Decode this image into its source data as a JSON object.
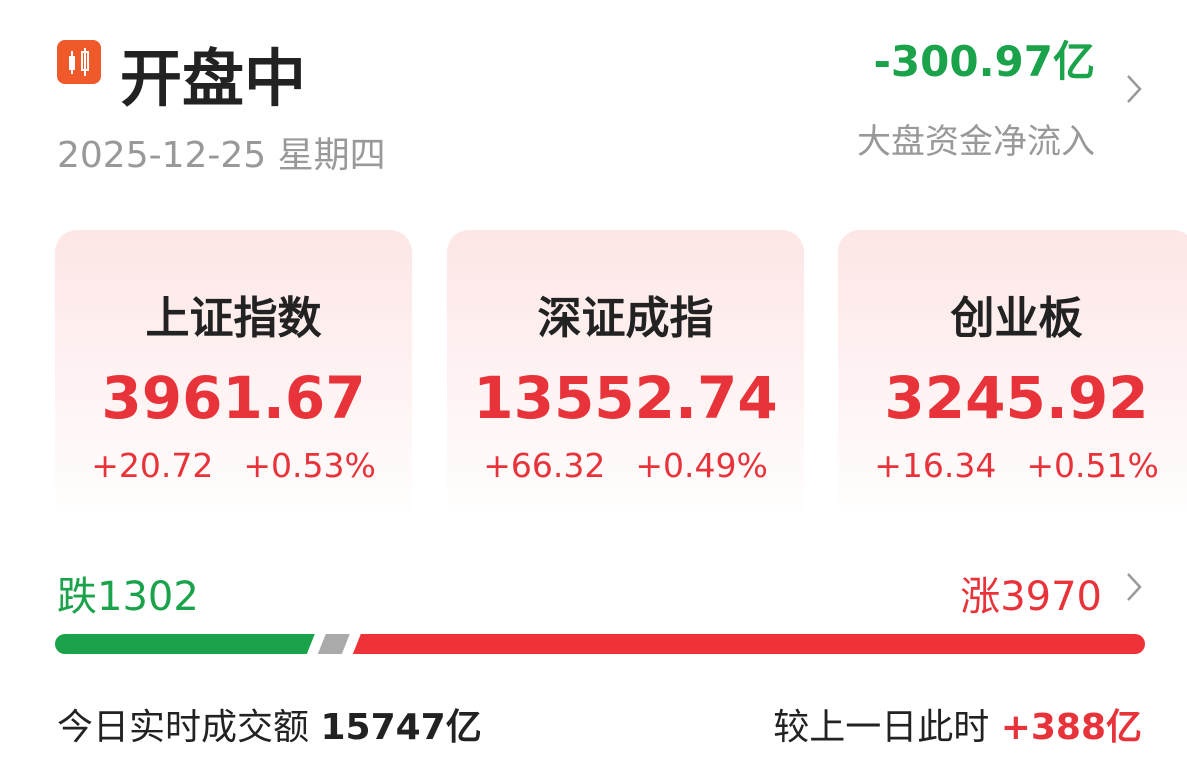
{
  "header": {
    "title": "开盘中",
    "date": "2025-12-25 星期四",
    "net_flow": "-300.97亿",
    "net_flow_label": "大盘资金净流入"
  },
  "indices": [
    {
      "name": "上证指数",
      "value": "3961.67",
      "change": "+20.72",
      "change_pct": "+0.53%"
    },
    {
      "name": "深证成指",
      "value": "13552.74",
      "change": "+66.32",
      "change_pct": "+0.49%"
    },
    {
      "name": "创业板",
      "value": "3245.92",
      "change": "+16.34",
      "change_pct": "+0.51%"
    }
  ],
  "breadth": {
    "falls_label": "跌",
    "falls": 1302,
    "rises_label": "涨",
    "rises": 3970
  },
  "turnover": {
    "label": "今日实时成交额",
    "amount": "15747亿",
    "compare_label": "较上一日此时",
    "compare": "+388亿"
  }
}
